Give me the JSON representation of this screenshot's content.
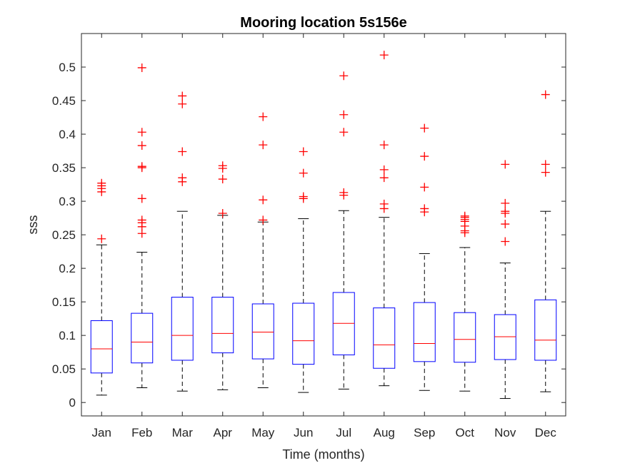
{
  "chart_data": {
    "type": "boxplot",
    "title": "Mooring location 5s156e",
    "xlabel": "Time (months)",
    "ylabel": "sss",
    "ylim": [
      -0.02,
      0.55
    ],
    "yticks": [
      0,
      0.05,
      0.1,
      0.15,
      0.2,
      0.25,
      0.3,
      0.35,
      0.4,
      0.45,
      0.5
    ],
    "ytick_labels": [
      "0",
      "0.05",
      "0.1",
      "0.15",
      "0.2",
      "0.25",
      "0.3",
      "0.35",
      "0.4",
      "0.45",
      "0.5"
    ],
    "categories": [
      "Jan",
      "Feb",
      "Mar",
      "Apr",
      "May",
      "Jun",
      "Jul",
      "Aug",
      "Sep",
      "Oct",
      "Nov",
      "Dec"
    ],
    "colors": {
      "box": "#0000ff",
      "median": "#ff0000",
      "outlier": "#ff0000",
      "whisker": "#000000"
    },
    "boxes": [
      {
        "whisker_low": 0.011,
        "q1": 0.044,
        "median": 0.08,
        "q3": 0.122,
        "whisker_high": 0.235,
        "outliers": [
          0.244,
          0.314,
          0.319,
          0.323,
          0.327
        ]
      },
      {
        "whisker_low": 0.022,
        "q1": 0.059,
        "median": 0.09,
        "q3": 0.133,
        "whisker_high": 0.224,
        "outliers": [
          0.252,
          0.262,
          0.268,
          0.272,
          0.304,
          0.35,
          0.352,
          0.383,
          0.403,
          0.499
        ]
      },
      {
        "whisker_low": 0.017,
        "q1": 0.063,
        "median": 0.1,
        "q3": 0.157,
        "whisker_high": 0.285,
        "outliers": [
          0.329,
          0.335,
          0.374,
          0.445,
          0.457
        ]
      },
      {
        "whisker_low": 0.019,
        "q1": 0.074,
        "median": 0.103,
        "q3": 0.157,
        "whisker_high": 0.279,
        "outliers": [
          0.282,
          0.333,
          0.349,
          0.353
        ]
      },
      {
        "whisker_low": 0.022,
        "q1": 0.065,
        "median": 0.105,
        "q3": 0.147,
        "whisker_high": 0.269,
        "outliers": [
          0.272,
          0.302,
          0.384,
          0.426
        ]
      },
      {
        "whisker_low": 0.015,
        "q1": 0.057,
        "median": 0.092,
        "q3": 0.148,
        "whisker_high": 0.274,
        "outliers": [
          0.304,
          0.307,
          0.342,
          0.374
        ]
      },
      {
        "whisker_low": 0.02,
        "q1": 0.071,
        "median": 0.118,
        "q3": 0.164,
        "whisker_high": 0.286,
        "outliers": [
          0.309,
          0.313,
          0.403,
          0.429,
          0.487
        ]
      },
      {
        "whisker_low": 0.025,
        "q1": 0.051,
        "median": 0.086,
        "q3": 0.141,
        "whisker_high": 0.276,
        "outliers": [
          0.289,
          0.296,
          0.335,
          0.347,
          0.384,
          0.518
        ]
      },
      {
        "whisker_low": 0.018,
        "q1": 0.061,
        "median": 0.088,
        "q3": 0.149,
        "whisker_high": 0.222,
        "outliers": [
          0.284,
          0.289,
          0.321,
          0.367,
          0.409
        ]
      },
      {
        "whisker_low": 0.017,
        "q1": 0.06,
        "median": 0.094,
        "q3": 0.134,
        "whisker_high": 0.231,
        "outliers": [
          0.253,
          0.256,
          0.263,
          0.27,
          0.273,
          0.276,
          0.278
        ]
      },
      {
        "whisker_low": 0.006,
        "q1": 0.064,
        "median": 0.098,
        "q3": 0.131,
        "whisker_high": 0.208,
        "outliers": [
          0.24,
          0.266,
          0.282,
          0.285,
          0.297,
          0.355
        ]
      },
      {
        "whisker_low": 0.016,
        "q1": 0.063,
        "median": 0.093,
        "q3": 0.153,
        "whisker_high": 0.285,
        "outliers": [
          0.343,
          0.355,
          0.459
        ]
      }
    ]
  }
}
